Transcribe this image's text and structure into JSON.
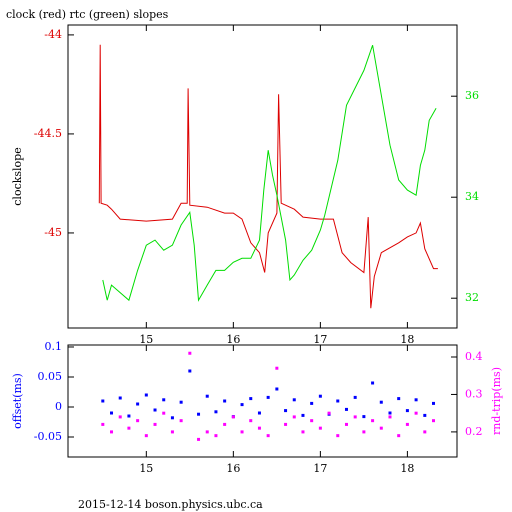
{
  "chart_data": [
    {
      "type": "line",
      "title": "clock (red) rtc (green) slopes",
      "ylabel": "clockslope",
      "ylabel_color": "#000000",
      "xlim": [
        14.1,
        18.57
      ],
      "xticks": [
        15,
        16,
        17,
        18
      ],
      "ylim": [
        -45.48,
        -43.95
      ],
      "yticks": [
        -44,
        -44.5,
        -45
      ],
      "y2lim": [
        31.41,
        37.41
      ],
      "y2ticks": [
        32,
        34,
        36
      ],
      "series": [
        {
          "color": "#dd0000",
          "axis": "y",
          "x": [
            14.46,
            14.47,
            14.48,
            14.55,
            14.6,
            14.7,
            15.0,
            15.3,
            15.4,
            15.47,
            15.48,
            15.5,
            15.7,
            15.9,
            16.0,
            16.1,
            16.2,
            16.3,
            16.36,
            16.4,
            16.5,
            16.52,
            16.55,
            16.7,
            16.8,
            17.0,
            17.15,
            17.25,
            17.35,
            17.5,
            17.55,
            17.58,
            17.62,
            17.7,
            17.9,
            18.0,
            18.1,
            18.15,
            18.2,
            18.3,
            18.35
          ],
          "values": [
            -44.85,
            -44.05,
            -44.85,
            -44.86,
            -44.88,
            -44.93,
            -44.94,
            -44.93,
            -44.85,
            -44.85,
            -44.27,
            -44.86,
            -44.87,
            -44.9,
            -44.9,
            -44.93,
            -45.05,
            -45.1,
            -45.2,
            -45.0,
            -44.9,
            -44.3,
            -44.85,
            -44.88,
            -44.92,
            -44.93,
            -44.93,
            -45.1,
            -45.15,
            -45.2,
            -44.92,
            -45.38,
            -45.22,
            -45.1,
            -45.05,
            -45.02,
            -45.0,
            -44.95,
            -45.08,
            -45.18,
            -45.18
          ]
        },
        {
          "color": "#00dd00",
          "axis": "y2",
          "x": [
            14.5,
            14.55,
            14.6,
            14.8,
            14.9,
            15.0,
            15.1,
            15.2,
            15.3,
            15.4,
            15.5,
            15.55,
            15.6,
            15.7,
            15.8,
            15.9,
            16.0,
            16.1,
            16.2,
            16.3,
            16.35,
            16.4,
            16.45,
            16.5,
            16.6,
            16.65,
            16.7,
            16.8,
            16.9,
            17.0,
            17.05,
            17.2,
            17.3,
            17.5,
            17.6,
            17.7,
            17.8,
            17.9,
            18.0,
            18.1,
            18.15,
            18.2,
            18.25,
            18.33
          ],
          "values": [
            32.36,
            31.96,
            32.26,
            31.96,
            32.55,
            33.05,
            33.15,
            32.95,
            33.05,
            33.45,
            33.7,
            33.05,
            31.96,
            32.26,
            32.55,
            32.55,
            32.71,
            32.79,
            32.79,
            33.15,
            34.14,
            34.93,
            34.44,
            34.04,
            33.15,
            32.36,
            32.46,
            32.75,
            32.95,
            33.35,
            33.64,
            34.73,
            35.82,
            36.51,
            37.01,
            36.02,
            35.03,
            34.34,
            34.14,
            34.04,
            34.63,
            34.93,
            35.52,
            35.76
          ]
        }
      ]
    },
    {
      "type": "scatter",
      "ylabel": "offset(ms)",
      "ylabel_color": "#0000ff",
      "y2label": "rnd-trip(ms)",
      "y2label_color": "#ff00ff",
      "xlim": [
        14.1,
        18.57
      ],
      "xticks": [
        15,
        16,
        17,
        18
      ],
      "ylim": [
        -0.0833,
        0.1033
      ],
      "yticks": [
        0.1,
        0.05,
        0,
        -0.05
      ],
      "y2lim": [
        0.133,
        0.432
      ],
      "y2ticks": [
        0.2,
        0.3,
        0.4
      ],
      "series": [
        {
          "color": "#0000ff",
          "axis": "y",
          "x": [
            14.5,
            14.6,
            14.7,
            14.8,
            14.9,
            15.0,
            15.1,
            15.2,
            15.3,
            15.4,
            15.5,
            15.6,
            15.7,
            15.8,
            15.9,
            16.0,
            16.1,
            16.2,
            16.3,
            16.4,
            16.5,
            16.6,
            16.7,
            16.8,
            16.9,
            17.0,
            17.1,
            17.2,
            17.3,
            17.4,
            17.5,
            17.6,
            17.7,
            17.8,
            17.9,
            18.0,
            18.1,
            18.2,
            18.3
          ],
          "values": [
            0.01,
            -0.01,
            0.015,
            -0.015,
            0.005,
            0.02,
            -0.005,
            0.012,
            -0.018,
            0.008,
            0.06,
            -0.012,
            0.018,
            -0.008,
            0.01,
            -0.016,
            0.004,
            0.014,
            -0.01,
            0.016,
            0.03,
            -0.006,
            0.012,
            -0.014,
            0.006,
            0.018,
            -0.012,
            0.01,
            -0.004,
            0.016,
            -0.016,
            0.04,
            0.008,
            -0.01,
            0.014,
            -0.006,
            0.012,
            -0.014,
            0.006
          ]
        },
        {
          "color": "#ff00ff",
          "axis": "y2",
          "x": [
            14.5,
            14.6,
            14.7,
            14.8,
            14.9,
            15.0,
            15.1,
            15.2,
            15.3,
            15.4,
            15.5,
            15.6,
            15.7,
            15.8,
            15.9,
            16.0,
            16.1,
            16.2,
            16.3,
            16.4,
            16.5,
            16.6,
            16.7,
            16.8,
            16.9,
            17.0,
            17.1,
            17.2,
            17.3,
            17.4,
            17.5,
            17.6,
            17.7,
            17.8,
            17.9,
            18.0,
            18.1,
            18.2,
            18.3
          ],
          "values": [
            0.22,
            0.2,
            0.24,
            0.21,
            0.23,
            0.19,
            0.22,
            0.25,
            0.2,
            0.23,
            0.41,
            0.18,
            0.2,
            0.19,
            0.22,
            0.24,
            0.2,
            0.23,
            0.21,
            0.19,
            0.37,
            0.22,
            0.24,
            0.2,
            0.23,
            0.21,
            0.25,
            0.19,
            0.22,
            0.24,
            0.2,
            0.23,
            0.21,
            0.24,
            0.19,
            0.22,
            0.25,
            0.2,
            0.23
          ]
        }
      ]
    }
  ],
  "footer": "2015-12-14 boson.physics.ubc.ca"
}
